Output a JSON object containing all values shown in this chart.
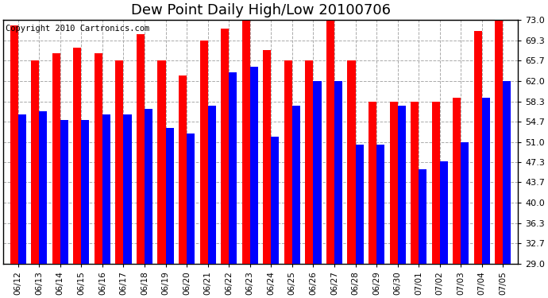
{
  "title": "Dew Point Daily High/Low 20100706",
  "copyright": "Copyright 2010 Cartronics.com",
  "dates": [
    "06/12",
    "06/13",
    "06/14",
    "06/15",
    "06/16",
    "06/17",
    "06/18",
    "06/19",
    "06/20",
    "06/21",
    "06/22",
    "06/23",
    "06/24",
    "06/25",
    "06/26",
    "06/27",
    "06/28",
    "06/29",
    "06/30",
    "07/01",
    "07/02",
    "07/03",
    "07/04",
    "07/05"
  ],
  "highs": [
    72.0,
    65.7,
    67.0,
    68.0,
    67.0,
    65.7,
    70.5,
    65.7,
    63.0,
    69.3,
    71.5,
    73.0,
    67.5,
    65.7,
    65.7,
    73.0,
    65.7,
    58.3,
    58.3,
    58.3,
    58.3,
    59.0,
    71.0,
    73.0
  ],
  "lows": [
    56.0,
    56.5,
    55.0,
    55.0,
    56.0,
    56.0,
    57.0,
    53.5,
    52.5,
    57.5,
    63.5,
    64.5,
    52.0,
    57.5,
    62.0,
    62.0,
    50.5,
    50.5,
    57.5,
    46.0,
    47.5,
    51.0,
    59.0,
    62.0
  ],
  "ymin": 29.0,
  "ymax": 73.0,
  "yticks": [
    29.0,
    32.7,
    36.3,
    40.0,
    43.7,
    47.3,
    51.0,
    54.7,
    58.3,
    62.0,
    65.7,
    69.3,
    73.0
  ],
  "bar_color_high": "#ff0000",
  "bar_color_low": "#0000ff",
  "bg_color": "#ffffff",
  "grid_color": "#aaaaaa",
  "title_fontsize": 13,
  "copyright_fontsize": 7.5
}
